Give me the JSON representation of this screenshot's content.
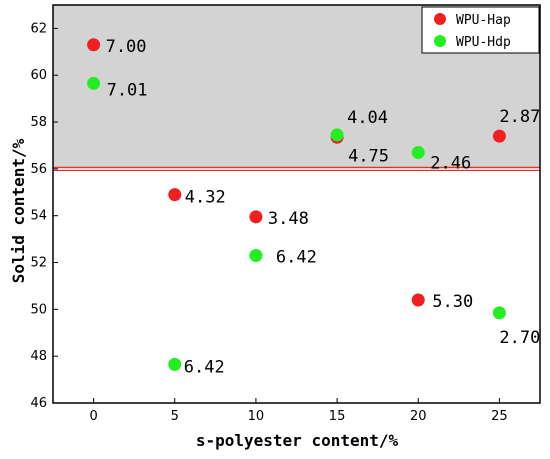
{
  "chart_data": {
    "type": "scatter",
    "xlabel": "s-polyester content/%",
    "ylabel": "Solid content/%",
    "xlim": [
      -2.5,
      27.5
    ],
    "ylim": [
      46,
      63
    ],
    "x_ticks": [
      "0",
      "5",
      "10",
      "15",
      "20",
      "25"
    ],
    "x_tick_values": [
      0,
      5,
      10,
      15,
      20,
      25
    ],
    "y_ticks": [
      "46",
      "48",
      "50",
      "52",
      "54",
      "56",
      "58",
      "60",
      "62"
    ],
    "y_tick_values": [
      46,
      48,
      50,
      52,
      54,
      56,
      58,
      60,
      62
    ],
    "shaded_region": {
      "from": 56,
      "to": 63,
      "color": "#d3d3d3"
    },
    "threshold_line": {
      "y": 56,
      "color": "#e8302a"
    },
    "legend_position": "top-right",
    "series": [
      {
        "name": "WPU-Hap",
        "color": "#f02020",
        "points": [
          {
            "x": 0,
            "y": 61.3,
            "label": "7.00"
          },
          {
            "x": 5,
            "y": 54.9,
            "label": "4.32"
          },
          {
            "x": 10,
            "y": 53.95,
            "label": "3.48"
          },
          {
            "x": 15,
            "y": 57.35,
            "label": "4.75"
          },
          {
            "x": 20,
            "y": 50.4,
            "label": "5.30"
          },
          {
            "x": 25,
            "y": 57.4,
            "label": "2.87"
          }
        ]
      },
      {
        "name": "WPU-Hdp",
        "color": "#22ee22",
        "points": [
          {
            "x": 0,
            "y": 59.65,
            "label": "7.01"
          },
          {
            "x": 5,
            "y": 47.65,
            "label": "6.42"
          },
          {
            "x": 10,
            "y": 52.3,
            "label": "6.42"
          },
          {
            "x": 15,
            "y": 57.45,
            "label": "4.04"
          },
          {
            "x": 20,
            "y": 56.7,
            "label": "2.46"
          },
          {
            "x": 25,
            "y": 49.85,
            "label": "2.70"
          }
        ]
      }
    ]
  }
}
